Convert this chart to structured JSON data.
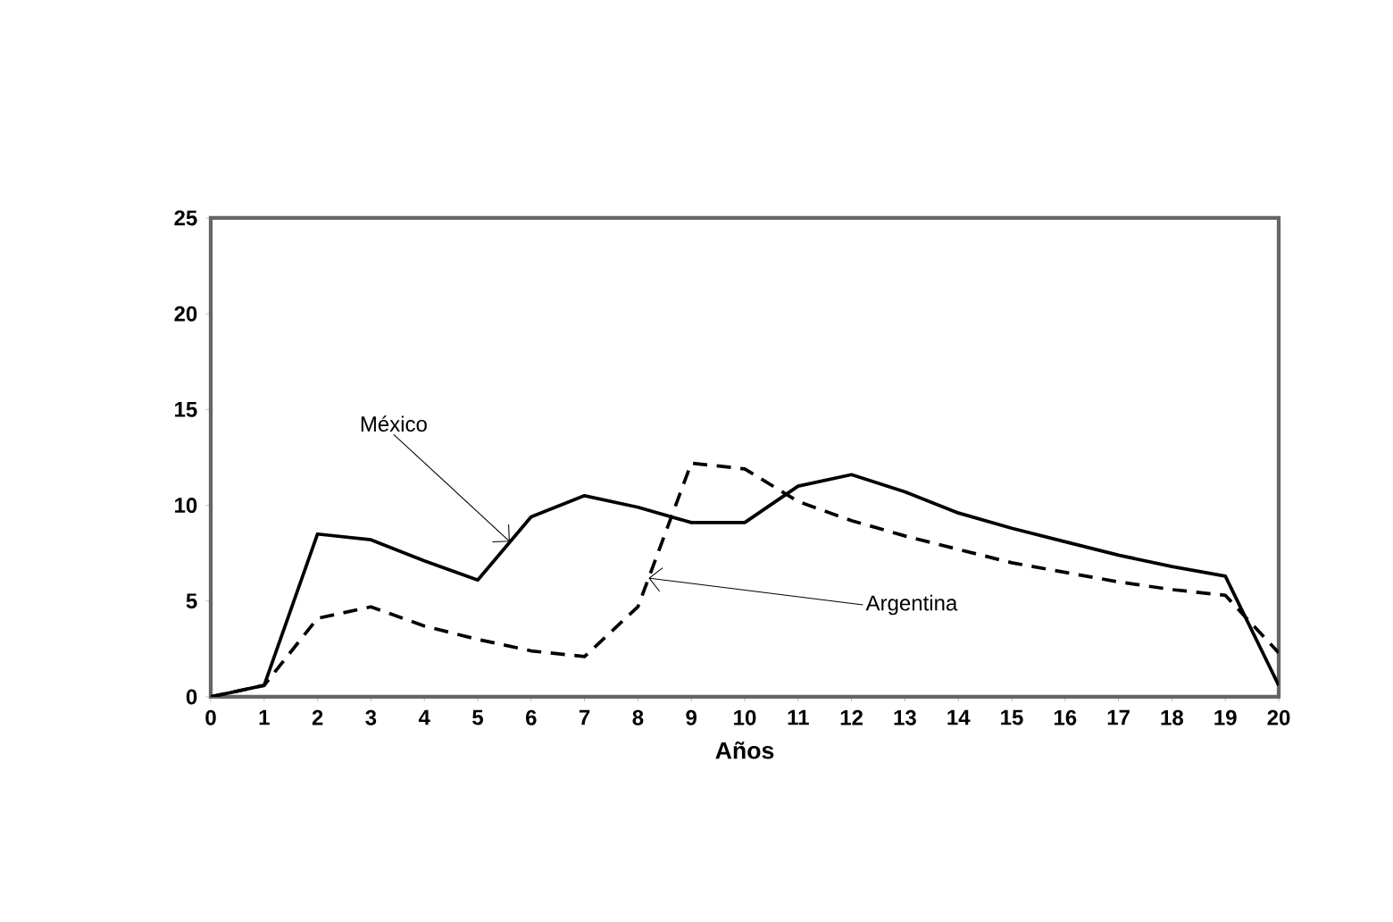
{
  "chart_data": {
    "type": "line",
    "xlabel": "Años",
    "x": [
      0,
      1,
      2,
      3,
      4,
      5,
      6,
      7,
      8,
      9,
      10,
      11,
      12,
      13,
      14,
      15,
      16,
      17,
      18,
      19,
      20
    ],
    "series": [
      {
        "color": "#000000",
        "line_style": "solid",
        "values": [
          0,
          0.6,
          8.5,
          8.2,
          7.1,
          6.1,
          9.4,
          10.5,
          9.9,
          9.1,
          9.1,
          11.0,
          11.6,
          10.7,
          9.6,
          8.8,
          8.1,
          7.4,
          6.8,
          6.3,
          0.6
        ]
      },
      {
        "color": "#000000",
        "line_style": "dashed",
        "values": [
          0,
          0.6,
          4.1,
          4.7,
          3.7,
          3.0,
          2.4,
          2.1,
          4.7,
          12.2,
          11.9,
          10.2,
          9.2,
          8.4,
          7.7,
          7.0,
          6.5,
          6.0,
          5.6,
          5.3,
          2.3
        ]
      }
    ],
    "annotations": [
      {
        "text": "México",
        "x": 5.6,
        "y": 8.1
      },
      {
        "text": "Argentina",
        "x": 8.2,
        "y": 6.2
      }
    ],
    "xlim": [
      0,
      20
    ],
    "ylim": [
      0,
      25
    ],
    "xticks": [
      0,
      1,
      2,
      3,
      4,
      5,
      6,
      7,
      8,
      9,
      10,
      11,
      12,
      13,
      14,
      15,
      16,
      17,
      18,
      19,
      20
    ],
    "yticks": [
      0,
      5,
      10,
      15,
      20,
      25
    ],
    "grid": false,
    "marker": "none"
  }
}
